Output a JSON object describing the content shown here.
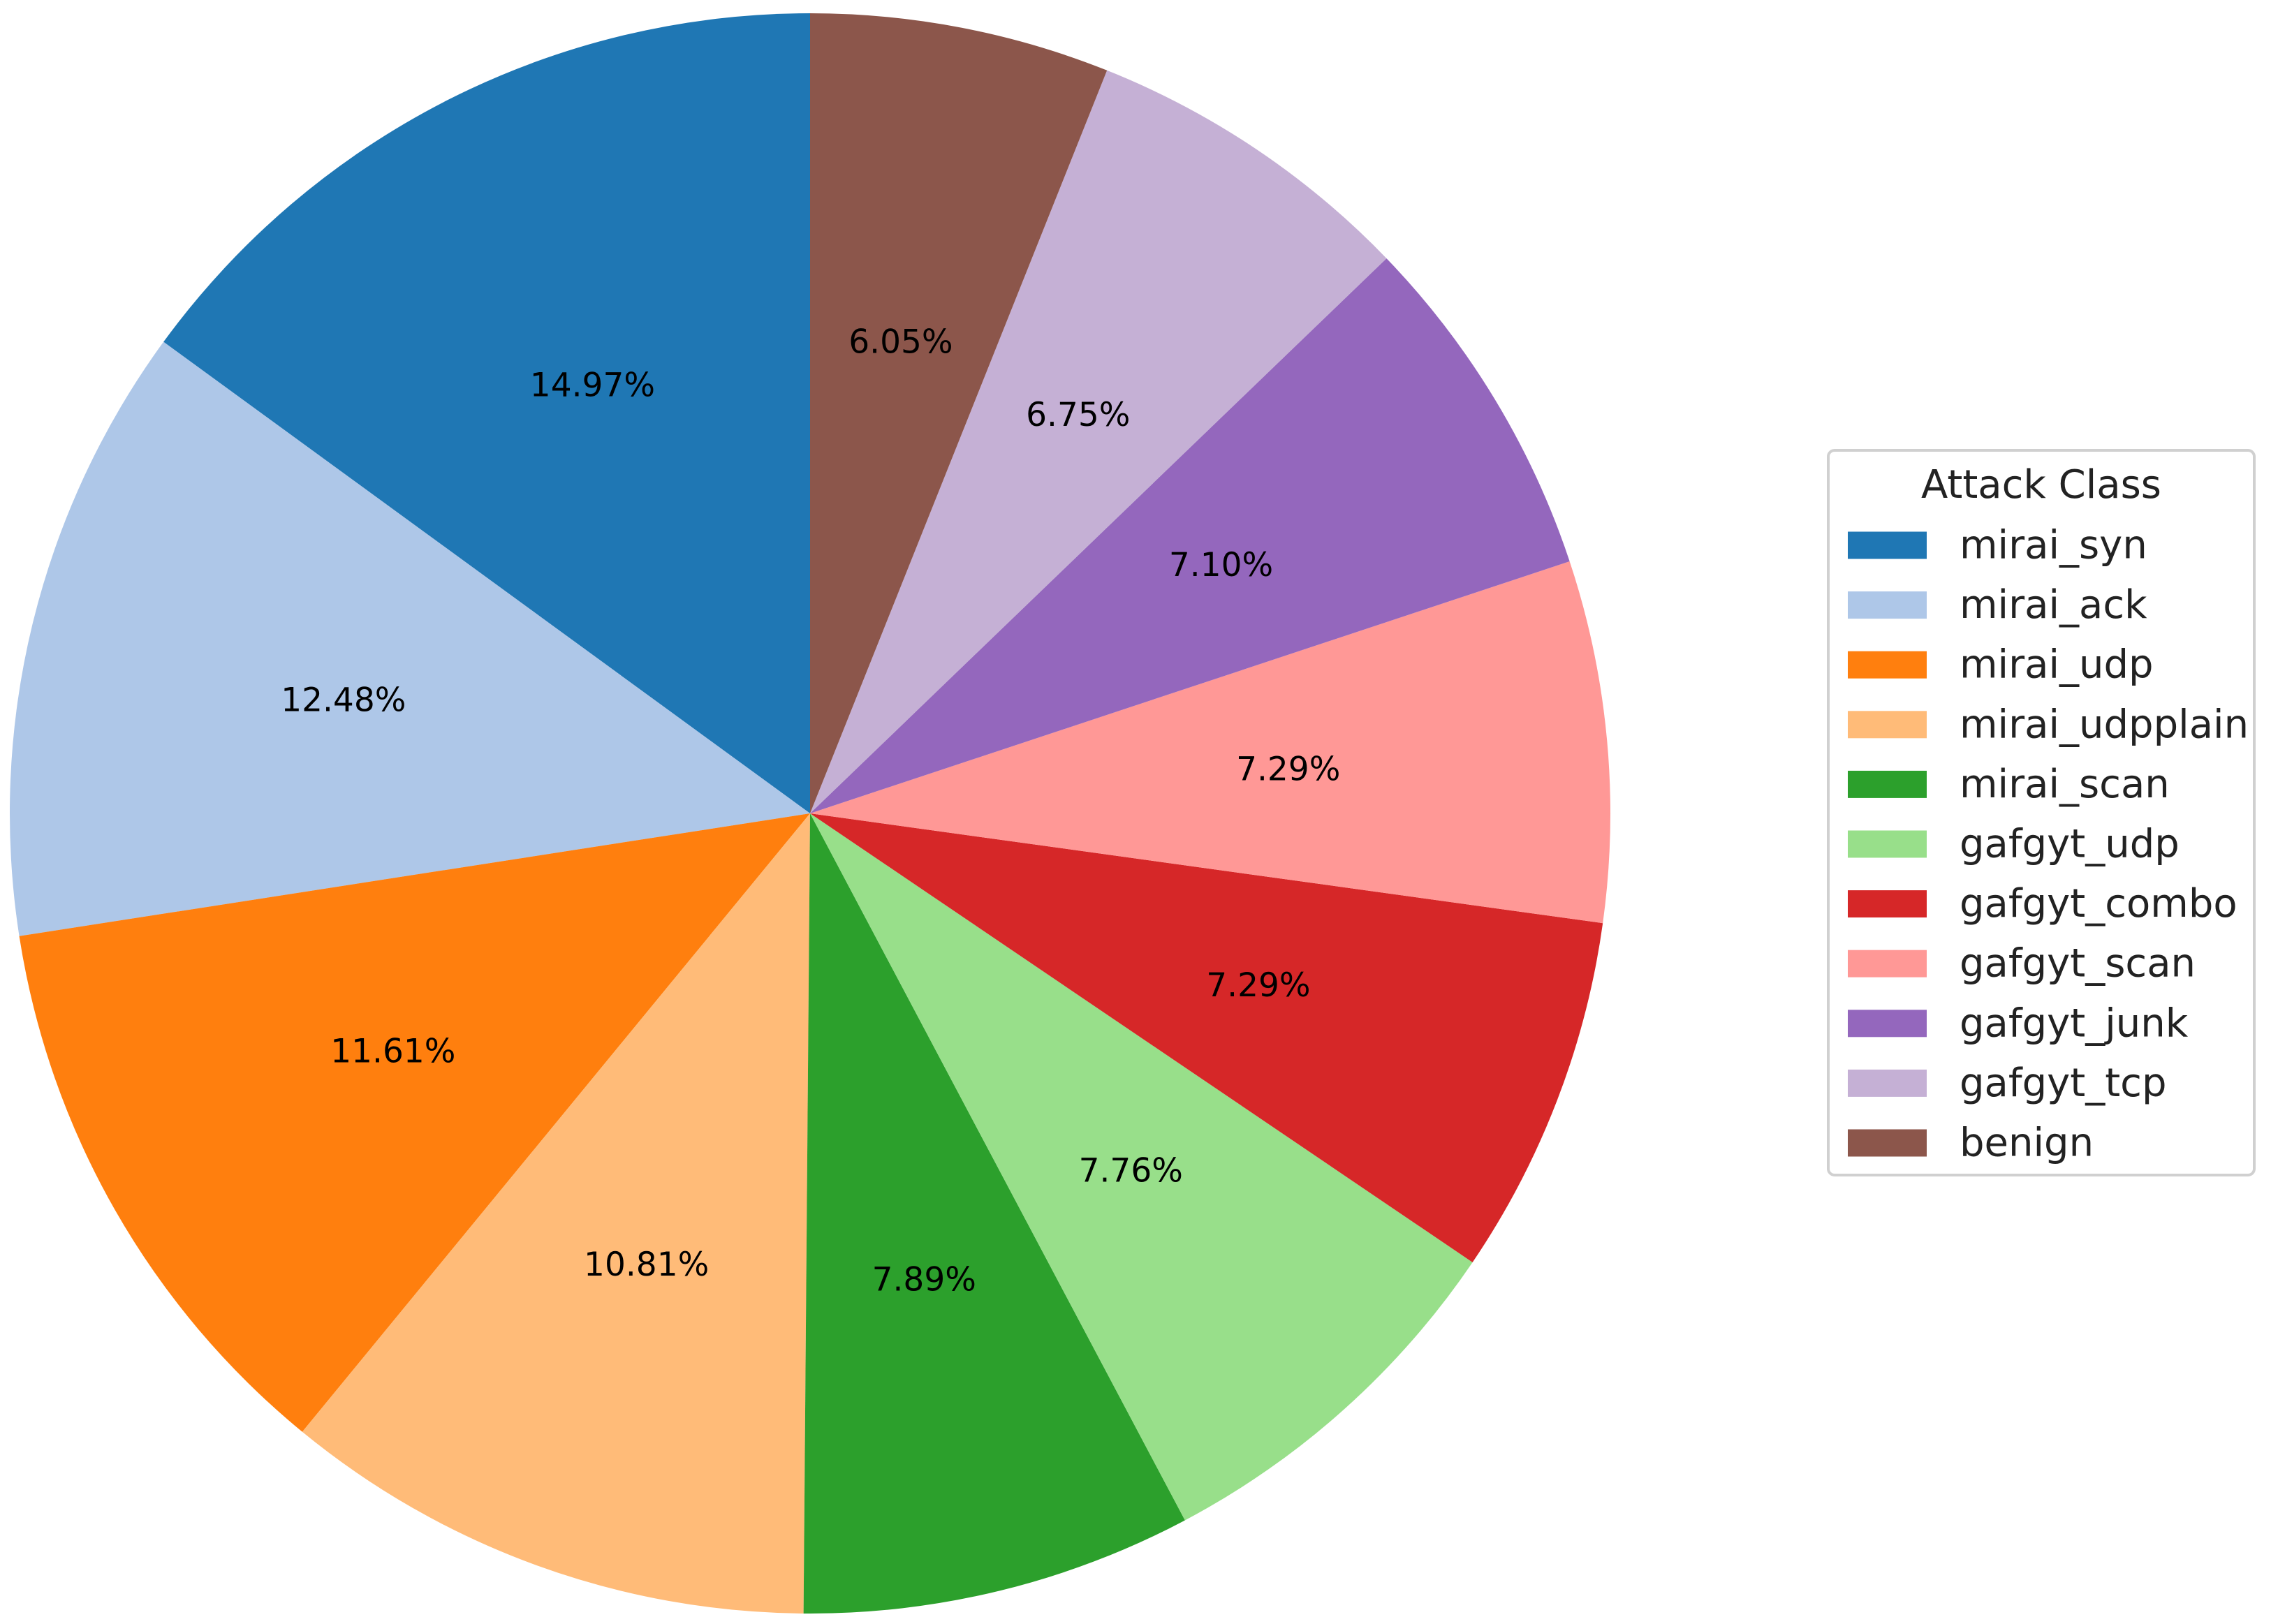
{
  "chart_data": {
    "type": "pie",
    "title": "",
    "start_angle_deg": 90,
    "direction": "counterclockwise",
    "slices": [
      {
        "label": "mirai_syn",
        "value": 14.97,
        "display": "14.97%",
        "color": "#1f77b4"
      },
      {
        "label": "mirai_ack",
        "value": 12.48,
        "display": "12.48%",
        "color": "#aec7e8"
      },
      {
        "label": "mirai_udp",
        "value": 11.61,
        "display": "11.61%",
        "color": "#ff7f0e"
      },
      {
        "label": "mirai_udpplain",
        "value": 10.81,
        "display": "10.81%",
        "color": "#ffbb78"
      },
      {
        "label": "mirai_scan",
        "value": 7.89,
        "display": "7.89%",
        "color": "#2ca02c"
      },
      {
        "label": "gafgyt_udp",
        "value": 7.76,
        "display": "7.76%",
        "color": "#98df8a"
      },
      {
        "label": "gafgyt_combo",
        "value": 7.29,
        "display": "7.29%",
        "color": "#d62728"
      },
      {
        "label": "gafgyt_scan",
        "value": 7.29,
        "display": "7.29%",
        "color": "#ff9896"
      },
      {
        "label": "gafgyt_junk",
        "value": 7.1,
        "display": "7.10%",
        "color": "#9467bd"
      },
      {
        "label": "gafgyt_tcp",
        "value": 6.75,
        "display": "6.75%",
        "color": "#c5b0d5"
      },
      {
        "label": "benign",
        "value": 6.05,
        "display": "6.05%",
        "color": "#8c564b"
      }
    ],
    "legend": {
      "title": "Attack Class",
      "placement": "right"
    }
  }
}
